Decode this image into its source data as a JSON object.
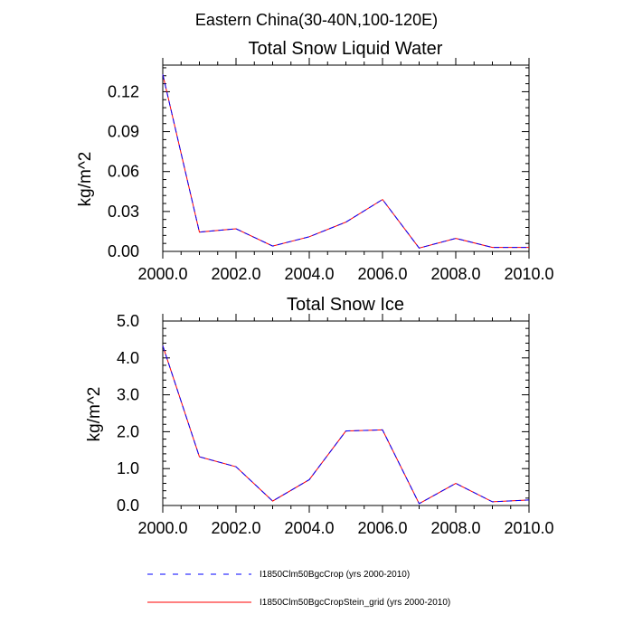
{
  "figure_title": "Eastern China(30-40N,100-120E)",
  "chart_data": [
    {
      "type": "line",
      "title": "Total Snow Liquid Water",
      "xlabel": "",
      "ylabel": "kg/m^2",
      "xlim": [
        2000,
        2010
      ],
      "ylim": [
        0,
        0.14
      ],
      "x_ticks": [
        "2000.0",
        "2002.0",
        "2004.0",
        "2006.0",
        "2008.0",
        "2010.0"
      ],
      "y_ticks": [
        "0.00",
        "0.03",
        "0.06",
        "0.09",
        "0.12"
      ],
      "x": [
        2000,
        2001,
        2002,
        2003,
        2004,
        2005,
        2006,
        2007,
        2008,
        2009,
        2010
      ],
      "series": [
        {
          "name": "I1850Clm50BgcCrop (yrs 2000-2010)",
          "color": "#0000ff",
          "dash": true,
          "values": [
            0.133,
            0.0145,
            0.017,
            0.004,
            0.011,
            0.022,
            0.039,
            0.0025,
            0.0098,
            0.003,
            0.003
          ]
        },
        {
          "name": "I1850Clm50BgcCropStein_grid (yrs 2000-2010)",
          "color": "#ff0000",
          "dash": false,
          "values": [
            0.133,
            0.0145,
            0.017,
            0.004,
            0.011,
            0.022,
            0.039,
            0.0025,
            0.0098,
            0.003,
            0.003
          ]
        }
      ]
    },
    {
      "type": "line",
      "title": "Total Snow Ice",
      "xlabel": "",
      "ylabel": "kg/m^2",
      "xlim": [
        2000,
        2010
      ],
      "ylim": [
        0,
        5
      ],
      "x_ticks": [
        "2000.0",
        "2002.0",
        "2004.0",
        "2006.0",
        "2008.0",
        "2010.0"
      ],
      "y_ticks": [
        "0.0",
        "1.0",
        "2.0",
        "3.0",
        "4.0",
        "5.0"
      ],
      "x": [
        2000,
        2001,
        2002,
        2003,
        2004,
        2005,
        2006,
        2007,
        2008,
        2009,
        2010
      ],
      "series": [
        {
          "name": "I1850Clm50BgcCrop (yrs 2000-2010)",
          "color": "#0000ff",
          "dash": true,
          "values": [
            4.33,
            1.32,
            1.05,
            0.12,
            0.7,
            2.02,
            2.05,
            0.05,
            0.6,
            0.1,
            0.15
          ]
        },
        {
          "name": "I1850Clm50BgcCropStein_grid (yrs 2000-2010)",
          "color": "#ff0000",
          "dash": false,
          "values": [
            4.33,
            1.32,
            1.05,
            0.12,
            0.7,
            2.02,
            2.05,
            0.05,
            0.6,
            0.1,
            0.15
          ]
        }
      ]
    }
  ],
  "legend": [
    {
      "label": "I1850Clm50BgcCrop (yrs 2000-2010)",
      "color": "#0000ff",
      "dash": true
    },
    {
      "label": "I1850Clm50BgcCropStein_grid (yrs 2000-2010)",
      "color": "#ff0000",
      "dash": false
    }
  ]
}
